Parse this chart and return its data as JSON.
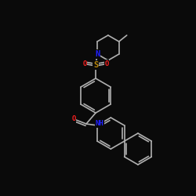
{
  "background": "#0a0a0a",
  "bond_color": "#b0b0b0",
  "bond_width": 1.2,
  "atom_colors": {
    "N": "#2020ff",
    "O": "#ff2020",
    "S": "#b8860b",
    "C": "#b0b0b0"
  },
  "font_size": 6.5,
  "fig_size": [
    2.5,
    2.5
  ],
  "dpi": 100
}
